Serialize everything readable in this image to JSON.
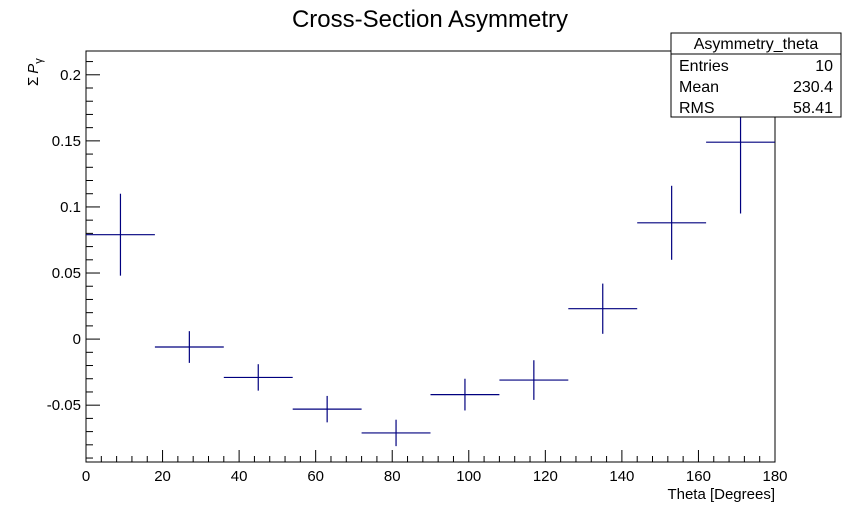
{
  "chart_data": {
    "type": "scatter",
    "title": "Cross-Section Asymmetry",
    "xlabel": "Theta [Degrees]",
    "ylabel_symbol": "Σ",
    "ylabel_var": "P",
    "ylabel_sub": "γ",
    "xlim": [
      0,
      180
    ],
    "ylim": [
      -0.093,
      0.218
    ],
    "x_ticks": [
      0,
      20,
      40,
      60,
      80,
      100,
      120,
      140,
      160,
      180
    ],
    "x_tick_labels": [
      "0",
      "20",
      "40",
      "60",
      "80",
      "100",
      "120",
      "140",
      "160",
      "180"
    ],
    "y_ticks": [
      -0.05,
      0,
      0.05,
      0.1,
      0.15,
      0.2
    ],
    "y_tick_labels": [
      "-0.05",
      "0",
      "0.05",
      "0.1",
      "0.15",
      "0.2"
    ],
    "grid": false,
    "marker_color": "#00007f",
    "series": [
      {
        "x": [
          9,
          27,
          45,
          63,
          81,
          99,
          117,
          135,
          153,
          171
        ],
        "x_low": [
          0,
          18,
          36,
          54,
          72,
          90,
          108,
          126,
          144,
          162
        ],
        "x_high": [
          18,
          36,
          54,
          72,
          90,
          108,
          126,
          144,
          162,
          180
        ],
        "y": [
          0.079,
          -0.006,
          -0.029,
          -0.053,
          -0.071,
          -0.042,
          -0.031,
          0.023,
          0.088,
          0.149
        ],
        "y_err": [
          0.031,
          0.012,
          0.01,
          0.01,
          0.01,
          0.012,
          0.015,
          0.019,
          0.028,
          0.054
        ]
      }
    ]
  },
  "stats_box": {
    "name": "Asymmetry_theta",
    "rows": [
      {
        "label": "Entries",
        "value": "10"
      },
      {
        "label": "Mean",
        "value": "230.4"
      },
      {
        "label": "RMS",
        "value": "58.41"
      }
    ]
  }
}
